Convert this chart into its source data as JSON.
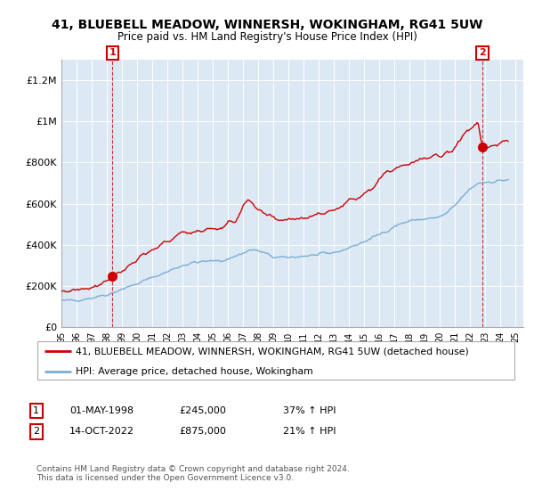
{
  "title": "41, BLUEBELL MEADOW, WINNERSH, WOKINGHAM, RG41 5UW",
  "subtitle": "Price paid vs. HM Land Registry's House Price Index (HPI)",
  "legend_line1": "41, BLUEBELL MEADOW, WINNERSH, WOKINGHAM, RG41 5UW (detached house)",
  "legend_line2": "HPI: Average price, detached house, Wokingham",
  "transaction1_date": "01-MAY-1998",
  "transaction1_price": "£245,000",
  "transaction1_hpi": "37% ↑ HPI",
  "transaction2_date": "14-OCT-2022",
  "transaction2_price": "£875,000",
  "transaction2_hpi": "21% ↑ HPI",
  "footer": "Contains HM Land Registry data © Crown copyright and database right 2024.\nThis data is licensed under the Open Government Licence v3.0.",
  "red_color": "#cc0000",
  "blue_color": "#7aadd4",
  "bg_color": "#dce9f5",
  "marker1_x": 1998.37,
  "marker1_y": 245000,
  "marker2_x": 2022.79,
  "marker2_y": 875000,
  "ylim": [
    0,
    1300000
  ],
  "xlim": [
    1995.0,
    2025.5
  ],
  "yticks": [
    0,
    200000,
    400000,
    600000,
    800000,
    1000000,
    1200000
  ],
  "xtick_years": [
    1995,
    1996,
    1997,
    1998,
    1999,
    2000,
    2001,
    2002,
    2003,
    2004,
    2005,
    2006,
    2007,
    2008,
    2009,
    2010,
    2011,
    2012,
    2013,
    2014,
    2015,
    2016,
    2017,
    2018,
    2019,
    2020,
    2021,
    2022,
    2023,
    2024,
    2025
  ]
}
